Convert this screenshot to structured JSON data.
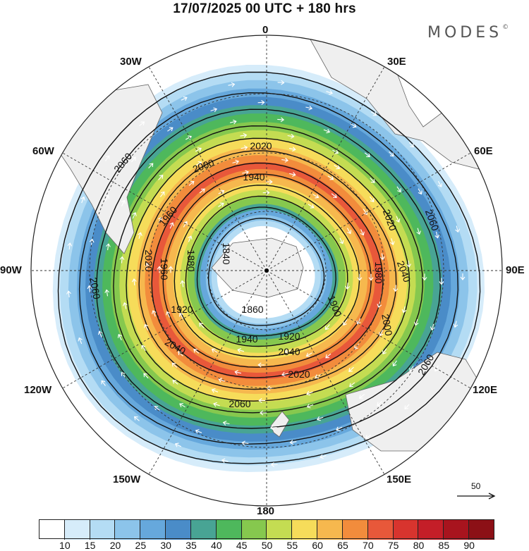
{
  "title": "17/07/2025  00 UTC  + 180 hrs",
  "brand": "MODES",
  "brand_mark": "©",
  "colors": {
    "ocean_bg": "#ffffff",
    "land": "#efefef",
    "contour": "#111111",
    "arrow": "#ffffff"
  },
  "longitude_labels": [
    {
      "name": "lon-0",
      "text": "0"
    },
    {
      "name": "lon-30e",
      "text": "30E"
    },
    {
      "name": "lon-60e",
      "text": "60E"
    },
    {
      "name": "lon-90e",
      "text": "90E"
    },
    {
      "name": "lon-120e",
      "text": "120E"
    },
    {
      "name": "lon-150e",
      "text": "150E"
    },
    {
      "name": "lon-180",
      "text": "180"
    },
    {
      "name": "lon-150w",
      "text": "150W"
    },
    {
      "name": "lon-120w",
      "text": "120W"
    },
    {
      "name": "lon-90w",
      "text": "90W"
    },
    {
      "name": "lon-60w",
      "text": "60W"
    },
    {
      "name": "lon-30w",
      "text": "30W"
    }
  ],
  "contour_labels": [
    "2060",
    "2060",
    "2060",
    "2060",
    "2060",
    "2040",
    "2040",
    "2040",
    "2020",
    "2020",
    "2020",
    "2020",
    "2000",
    "2000",
    "1980",
    "1960",
    "1960",
    "1940",
    "1940",
    "1920",
    "1920",
    "1900",
    "1880",
    "1860",
    "1840"
  ],
  "wind_reference": {
    "value": "50"
  },
  "colorbar": {
    "ticks": [
      "10",
      "15",
      "20",
      "25",
      "30",
      "35",
      "40",
      "45",
      "50",
      "55",
      "60",
      "65",
      "70",
      "75",
      "80",
      "85",
      "90"
    ],
    "colors": [
      "#ffffff",
      "#d6ecfa",
      "#b4dcf4",
      "#8cc4ea",
      "#66a8dc",
      "#4a8cc8",
      "#48a494",
      "#4eb85c",
      "#86c84e",
      "#c4dc52",
      "#f6dc5a",
      "#f6b84e",
      "#f28c3c",
      "#e8583a",
      "#d8342e",
      "#c41e28",
      "#a8141e",
      "#8c1016"
    ]
  }
}
